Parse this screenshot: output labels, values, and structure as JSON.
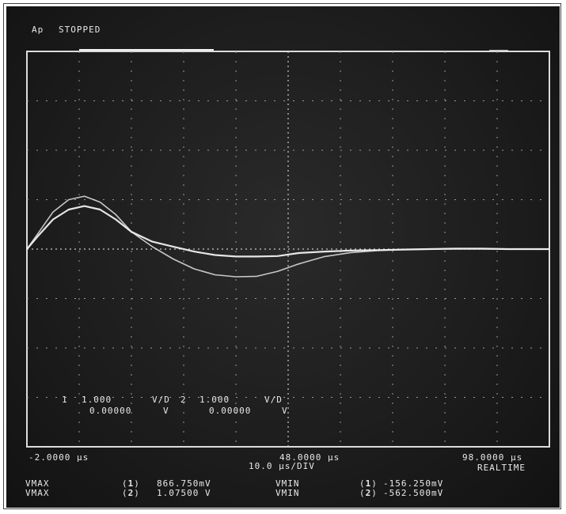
{
  "header": {
    "mode_prefix": "Ap",
    "status": "STOPPED"
  },
  "channels": {
    "ch1": {
      "marker": "1",
      "scale": "1.000",
      "unit": "V/D",
      "offset": "0.00000",
      "offset_unit": "V"
    },
    "ch2": {
      "marker": "2",
      "scale": "1.000",
      "unit": "V/D",
      "offset": "0.00000",
      "offset_unit": "V"
    }
  },
  "timebase": {
    "left": "-2.0000 µs",
    "center": "48.0000 µs",
    "right": "98.0000 µs",
    "per_div": "10.0 µs/DIV",
    "acq_mode": "REALTIME"
  },
  "measurements": [
    {
      "label": "VMAX",
      "channel": "1",
      "value": "866.750mV",
      "min_label": "VMIN",
      "min_channel": "1",
      "min_value": "-156.250mV"
    },
    {
      "label": "VMAX",
      "channel": "2",
      "value": "1.07500 V",
      "min_label": "VMIN",
      "min_channel": "2",
      "min_value": "-562.500mV"
    }
  ],
  "colors": {
    "screen": "#1c1c1c",
    "trace": "#f0f0f0",
    "grid": "#9a9a9a"
  },
  "chart_data": {
    "type": "line",
    "x_unit": "µs",
    "y_unit": "V",
    "xlim": [
      -2,
      98
    ],
    "ylim": [
      -4,
      4
    ],
    "grid": true,
    "series": [
      {
        "name": "1",
        "x": [
          -2,
          0,
          3,
          6,
          9,
          12,
          15,
          18,
          22,
          26,
          30,
          34,
          38,
          42,
          46,
          50,
          55,
          60,
          65,
          70,
          75,
          80,
          85,
          90,
          98
        ],
        "values": [
          0,
          0.25,
          0.6,
          0.8,
          0.87,
          0.8,
          0.6,
          0.35,
          0.15,
          0.05,
          -0.05,
          -0.12,
          -0.15,
          -0.15,
          -0.14,
          -0.08,
          -0.05,
          -0.03,
          -0.02,
          -0.01,
          0,
          0.01,
          0.01,
          0,
          0
        ]
      },
      {
        "name": "2",
        "x": [
          -2,
          0,
          3,
          6,
          9,
          12,
          15,
          18,
          22,
          26,
          30,
          34,
          38,
          42,
          46,
          50,
          55,
          60,
          65,
          70,
          75,
          80,
          85,
          90,
          98
        ],
        "values": [
          0,
          0.3,
          0.75,
          1.0,
          1.07,
          0.95,
          0.7,
          0.35,
          0.05,
          -0.2,
          -0.4,
          -0.52,
          -0.56,
          -0.55,
          -0.45,
          -0.3,
          -0.15,
          -0.07,
          -0.03,
          -0.01,
          0,
          0,
          0,
          0,
          0
        ]
      }
    ]
  }
}
